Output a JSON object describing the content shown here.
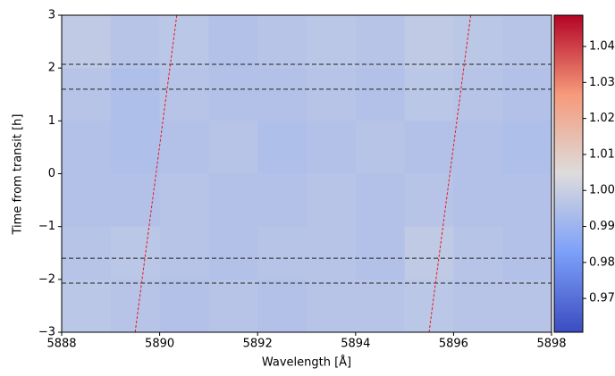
{
  "chart_data": {
    "type": "heatmap",
    "xlabel": "Wavelength [Å]",
    "ylabel": "Time from transit [h]",
    "xlim": [
      5888,
      5898
    ],
    "ylim": [
      -3,
      3
    ],
    "xticks": [
      5888,
      5890,
      5892,
      5894,
      5896,
      5898
    ],
    "yticks": [
      {
        "value": -3,
        "label": "−3"
      },
      {
        "value": -2,
        "label": "−2"
      },
      {
        "value": -1,
        "label": "−1"
      },
      0,
      1,
      2,
      3
    ],
    "colormap": "coolwarm",
    "clim": [
      0.9606,
      1.0487
    ],
    "cticks": [
      0.97,
      0.98,
      0.99,
      {
        "value": 1,
        "label": "1.00"
      },
      1.01,
      1.02,
      1.03,
      1.04
    ],
    "z": [
      [
        0.998,
        0.996,
        0.997,
        0.995,
        0.996,
        0.997,
        0.996,
        0.998,
        0.997,
        0.996
      ],
      [
        0.996,
        0.994,
        0.996,
        0.995,
        0.995,
        0.996,
        0.995,
        0.997,
        0.996,
        0.995
      ],
      [
        0.995,
        0.994,
        0.995,
        0.996,
        0.994,
        0.995,
        0.996,
        0.995,
        0.995,
        0.994
      ],
      [
        0.995,
        0.995,
        0.996,
        0.995,
        0.995,
        0.996,
        0.995,
        0.996,
        0.995,
        0.995
      ],
      [
        0.996,
        0.997,
        0.996,
        0.995,
        0.996,
        0.996,
        0.995,
        0.998,
        0.996,
        0.995
      ],
      [
        0.997,
        0.996,
        0.995,
        0.996,
        0.995,
        0.996,
        0.996,
        0.997,
        0.996,
        0.996
      ]
    ],
    "hlines": [
      2.07,
      1.6,
      -1.6,
      -2.07
    ],
    "hline_color": "#222222",
    "tracks": [
      {
        "x": [
          5889.5,
          5890.35
        ],
        "y": [
          -3,
          3
        ]
      },
      {
        "x": [
          5895.5,
          5896.35
        ],
        "y": [
          -3,
          3
        ]
      }
    ],
    "track_color": "#e8161b"
  }
}
